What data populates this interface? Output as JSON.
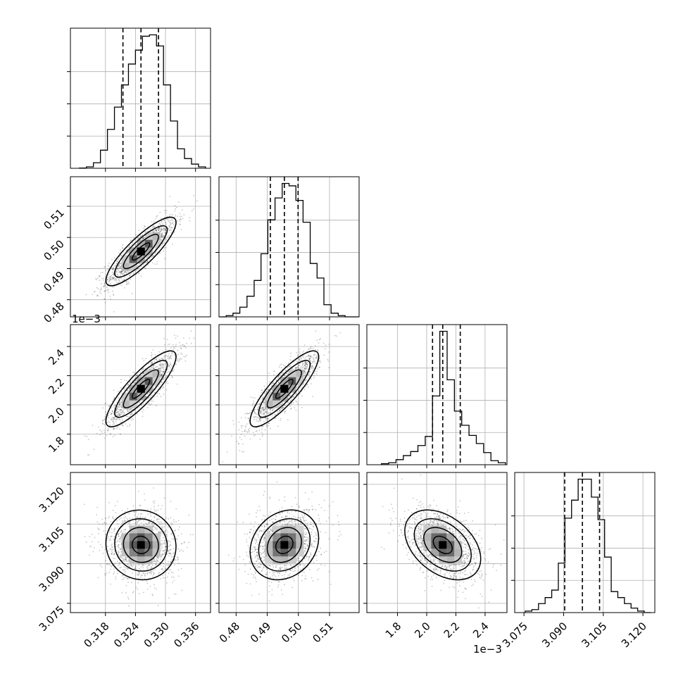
{
  "chart_data": {
    "type": "corner",
    "n_params": 4,
    "params": [
      {
        "index": 0,
        "range": [
          0.311,
          0.339
        ],
        "ticks": [
          0.318,
          0.324,
          0.33,
          0.336
        ],
        "tick_labels": [
          "0.318",
          "0.324",
          "0.330",
          "0.336"
        ],
        "quantiles": [
          0.3215,
          0.3251,
          0.3286
        ],
        "histogram": {
          "edges": [
            0.3128,
            0.3142,
            0.3156,
            0.317,
            0.3184,
            0.3198,
            0.3212,
            0.3226,
            0.324,
            0.3254,
            0.3268,
            0.3282,
            0.3296,
            0.331,
            0.3324,
            0.3338,
            0.3352,
            0.3366,
            0.338
          ],
          "counts": [
            0.2,
            1,
            4,
            13,
            28,
            44,
            60,
            75,
            85,
            95,
            96,
            88,
            60,
            34,
            14,
            7,
            3,
            1
          ]
        }
      },
      {
        "index": 1,
        "range": [
          0.4745,
          0.5195
        ],
        "ticks": [
          0.48,
          0.49,
          0.5,
          0.51
        ],
        "tick_labels": [
          "0.48",
          "0.49",
          "0.50",
          "0.51"
        ],
        "quantiles": [
          0.491,
          0.4955,
          0.4999
        ],
        "histogram": {
          "edges": [
            0.4745,
            0.4768,
            0.479,
            0.4812,
            0.4835,
            0.4858,
            0.488,
            0.4902,
            0.4925,
            0.4948,
            0.497,
            0.4992,
            0.5015,
            0.5038,
            0.506,
            0.5082,
            0.5105,
            0.5128,
            0.515,
            0.5172,
            0.5195
          ],
          "counts": [
            0,
            1,
            3,
            8,
            17,
            30,
            52,
            80,
            98,
            110,
            108,
            96,
            78,
            44,
            32,
            10,
            3,
            1,
            0,
            0
          ]
        }
      },
      {
        "index": 2,
        "range": [
          1.59,
          2.55
        ],
        "ticks": [
          1.8,
          2.0,
          2.2,
          2.4
        ],
        "tick_labels": [
          "1.8",
          "2.0",
          "2.2",
          "2.4"
        ],
        "offset_label": "1e−3",
        "quantiles": [
          2.04,
          2.11,
          2.23
        ],
        "histogram": {
          "edges": [
            1.69,
            1.74,
            1.79,
            1.84,
            1.89,
            1.94,
            1.99,
            2.04,
            2.09,
            2.14,
            2.19,
            2.24,
            2.29,
            2.34,
            2.39,
            2.44,
            2.49,
            2.54
          ],
          "counts": [
            1,
            2,
            5,
            9,
            13,
            19,
            28,
            68,
            132,
            84,
            53,
            39,
            29,
            21,
            12,
            4,
            2
          ]
        }
      },
      {
        "index": 3,
        "range": [
          3.0715,
          3.1245
        ],
        "ticks": [
          3.075,
          3.09,
          3.105,
          3.12
        ],
        "tick_labels": [
          "3.075",
          "3.090",
          "3.105",
          "3.120"
        ],
        "quantiles": [
          3.0904,
          3.0971,
          3.1036
        ],
        "histogram": {
          "edges": [
            3.0755,
            3.078,
            3.0805,
            3.083,
            3.0855,
            3.088,
            3.0905,
            3.093,
            3.0955,
            3.098,
            3.1005,
            3.103,
            3.1055,
            3.108,
            3.1105,
            3.113,
            3.1155,
            3.118,
            3.1205,
            3.123
          ],
          "counts": [
            1,
            2,
            6,
            10,
            15,
            33,
            63,
            75,
            89,
            89,
            77,
            62,
            37,
            14,
            10,
            6,
            3,
            1,
            0
          ]
        }
      }
    ],
    "pairs": [
      {
        "x_param": 0,
        "y_param": 1,
        "mean": [
          0.3251,
          0.4955
        ],
        "sd": [
          0.0035,
          0.0055
        ],
        "corr": 0.85
      },
      {
        "x_param": 0,
        "y_param": 2,
        "mean": [
          0.3251,
          2.11
        ],
        "sd": [
          0.0035,
          0.13
        ],
        "corr": 0.85
      },
      {
        "x_param": 1,
        "y_param": 2,
        "mean": [
          0.4955,
          2.11
        ],
        "sd": [
          0.0055,
          0.13
        ],
        "corr": 0.85
      },
      {
        "x_param": 0,
        "y_param": 3,
        "mean": [
          0.3251,
          3.0971
        ],
        "sd": [
          0.0035,
          0.0066
        ],
        "corr": -0.05
      },
      {
        "x_param": 1,
        "y_param": 3,
        "mean": [
          0.4955,
          3.0971
        ],
        "sd": [
          0.0055,
          0.0066
        ],
        "corr": 0.2
      },
      {
        "x_param": 2,
        "y_param": 3,
        "mean": [
          2.11,
          3.0971
        ],
        "sd": [
          0.13,
          0.0066
        ],
        "corr": -0.4
      }
    ],
    "contour_levels_sigma": [
      0.5,
      1.0,
      1.5,
      2.0
    ],
    "grid": true,
    "colors": {
      "line": "#000000",
      "grid": "#b0b0b0",
      "points": "#000000",
      "density": "#000000"
    }
  }
}
